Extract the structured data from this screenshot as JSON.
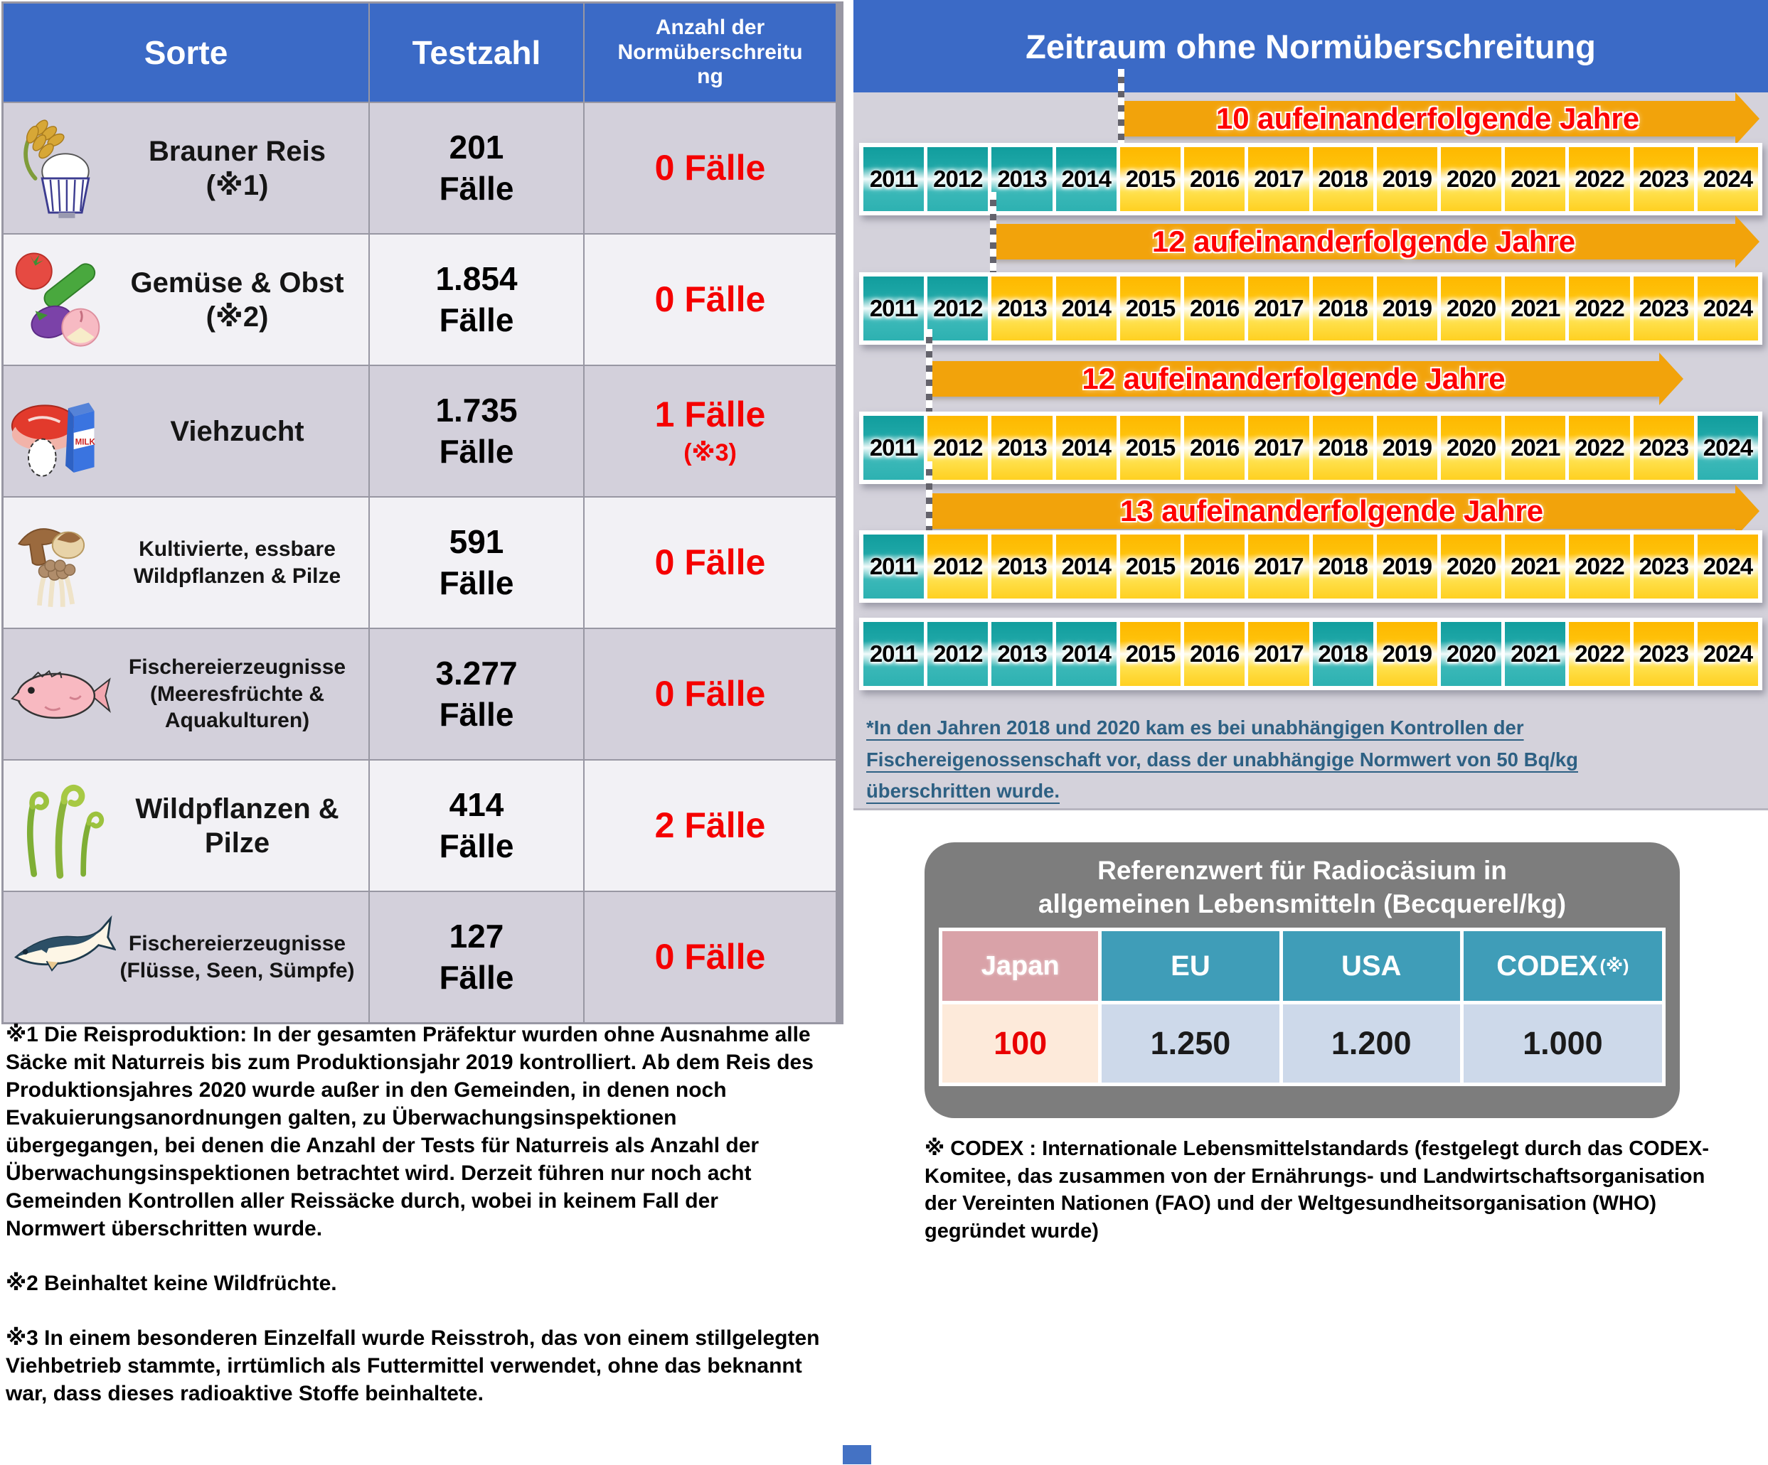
{
  "colors": {
    "header_blue": "#3b6ac6",
    "row_dark": "#d3d0db",
    "row_light": "#f2f1f5",
    "alert_red": "#f50000",
    "panel_bg": "#d4d2db",
    "year_teal": "#1fa8a8",
    "year_yellow": "#ffc000",
    "arrow_orange": "#f2a30b",
    "note_blue": "#2d6083",
    "ref_box_gray": "#7d7d7d",
    "japan_header_pink": "#d9a2a8",
    "intl_header_teal": "#3f9db8",
    "japan_value_bg": "#fdeada",
    "value_bg": "#cdd9ea"
  },
  "left_table": {
    "headers": [
      "Sorte",
      "Testzahl",
      "Anzahl der Normüberschreitung"
    ],
    "rows": [
      {
        "name": "Brauner Reis",
        "note": "(※1)",
        "tests": "201",
        "unit": "Fälle",
        "exceed": "0 Fälle",
        "exceed_note": ""
      },
      {
        "name": "Gemüse & Obst",
        "note": "(※2)",
        "tests": "1.854",
        "unit": "Fälle",
        "exceed": "0 Fälle",
        "exceed_note": ""
      },
      {
        "name": "Viehzucht",
        "note": "",
        "tests": "1.735",
        "unit": "Fälle",
        "exceed": "1 Fälle",
        "exceed_note": "(※3)"
      },
      {
        "name": "Kultivierte, essbare Wildpflanzen & Pilze",
        "note": "",
        "tests": "591",
        "unit": "Fälle",
        "exceed": "0 Fälle",
        "exceed_note": ""
      },
      {
        "name": "Fischereierzeugnisse (Meeresfrüchte & Aquakulturen)",
        "note": "",
        "tests": "3.277",
        "unit": "Fälle",
        "exceed": "0 Fälle",
        "exceed_note": ""
      },
      {
        "name": "Wildpflanzen & Pilze",
        "note": "",
        "tests": "414",
        "unit": "Fälle",
        "exceed": "2 Fälle",
        "exceed_note": ""
      },
      {
        "name": "Fischereierzeugnisse (Flüsse, Seen, Sümpfe)",
        "note": "",
        "tests": "127",
        "unit": "Fälle",
        "exceed": "0 Fälle",
        "exceed_note": ""
      }
    ]
  },
  "timeline": {
    "title": "Zeitraum ohne Normüberschreitung",
    "years": [
      "2011",
      "2012",
      "2013",
      "2014",
      "2015",
      "2016",
      "2017",
      "2018",
      "2019",
      "2020",
      "2021",
      "2022",
      "2023",
      "2024"
    ],
    "rows": [
      {
        "label": "10 aufeinanderfolgende Jahre",
        "cells": [
          "t",
          "t",
          "t",
          "t",
          "y",
          "y",
          "y",
          "y",
          "y",
          "y",
          "y",
          "y",
          "y",
          "y"
        ]
      },
      {
        "label": "12 aufeinanderfolgende Jahre",
        "cells": [
          "t",
          "t",
          "y",
          "y",
          "y",
          "y",
          "y",
          "y",
          "y",
          "y",
          "y",
          "y",
          "y",
          "y"
        ]
      },
      {
        "label": "12 aufeinanderfolgende Jahre",
        "cells": [
          "t",
          "y",
          "y",
          "y",
          "y",
          "y",
          "y",
          "y",
          "y",
          "y",
          "y",
          "y",
          "y",
          "t"
        ]
      },
      {
        "label": "13 aufeinanderfolgende Jahre",
        "cells": [
          "t",
          "y",
          "y",
          "y",
          "y",
          "y",
          "y",
          "y",
          "y",
          "y",
          "y",
          "y",
          "y",
          "y"
        ]
      },
      {
        "label": "",
        "cells": [
          "t",
          "t",
          "t",
          "t",
          "y",
          "y",
          "y",
          "t",
          "y",
          "t",
          "t",
          "y",
          "y",
          "y"
        ]
      }
    ],
    "footnote": "*In den Jahren 2018 und 2020 kam es bei unabhängigen Kontrollen der Fischereigenossenschaft vor, dass der unabhängige Normwert von 50 Bq/kg überschritten wurde."
  },
  "reference": {
    "title_line1": "Referenzwert für Radiocäsium in",
    "title_line2": "allgemeinen Lebensmitteln (Becquerel/kg)",
    "columns": [
      {
        "label": "Japan",
        "suffix": "",
        "value": "100"
      },
      {
        "label": "EU",
        "suffix": "",
        "value": "1.250"
      },
      {
        "label": "USA",
        "suffix": "",
        "value": "1.200"
      },
      {
        "label": "CODEX",
        "suffix": "(※)",
        "value": "1.000"
      }
    ],
    "note": "※ CODEX :  Internationale Lebensmittelstandards (festgelegt durch das CODEX-Komitee, das zusammen von der Ernährungs- und Landwirtschaftsorganisation der Vereinten Nationen (FAO) und der Weltgesundheitsorganisation (WHO) gegründet wurde)"
  },
  "footnotes": {
    "n1": "※1 Die Reisproduktion: In der gesamten Präfektur wurden ohne Ausnahme alle Säcke mit Naturreis bis zum Produktionsjahr 2019 kontrolliert. Ab dem Reis des Produktionsjahres 2020 wurde außer in den Gemeinden, in denen noch Evakuierungsanordnungen galten, zu Überwachungsinspektionen übergegangen, bei denen die Anzahl der Tests für Naturreis als Anzahl der Überwachungsinspektionen betrachtet wird. Derzeit führen nur noch acht Gemeinden Kontrollen aller Reissäcke durch, wobei in keinem Fall der Normwert überschritten wurde.",
    "n2": "※2 Beinhaltet keine Wildfrüchte.",
    "n3": "※3 In einem besonderen Einzelfall wurde Reisstroh, das von einem stillgelegten Viehbetrieb stammte, irrtümlich als Futtermittel verwendet, ohne das beknannt war, dass dieses radioaktive Stoffe beinhaltete."
  }
}
